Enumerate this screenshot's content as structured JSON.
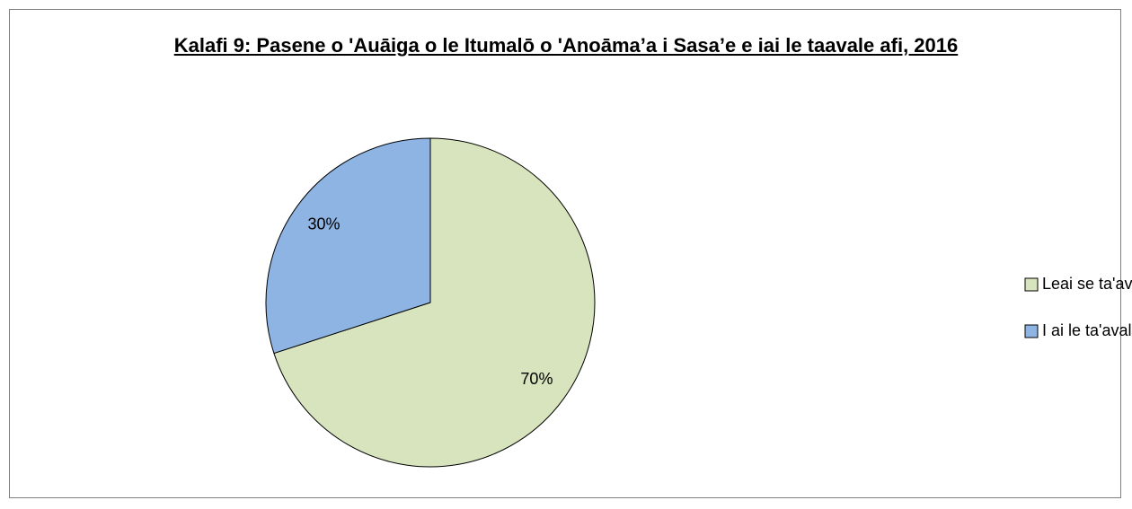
{
  "chart_data": {
    "type": "pie",
    "title": "Kalafi 9: Pasene o 'Auāiga o le Itumalō o 'Anoāma’a i Sasa’e e iai le taavale afi, 2016",
    "categories": [
      "Leai se ta'avale",
      "I ai le ta'avale"
    ],
    "values": [
      70,
      30
    ],
    "value_labels": [
      "70%",
      "30%"
    ],
    "colors": [
      "#d7e4bd",
      "#8eb4e3"
    ],
    "legend": "right"
  }
}
